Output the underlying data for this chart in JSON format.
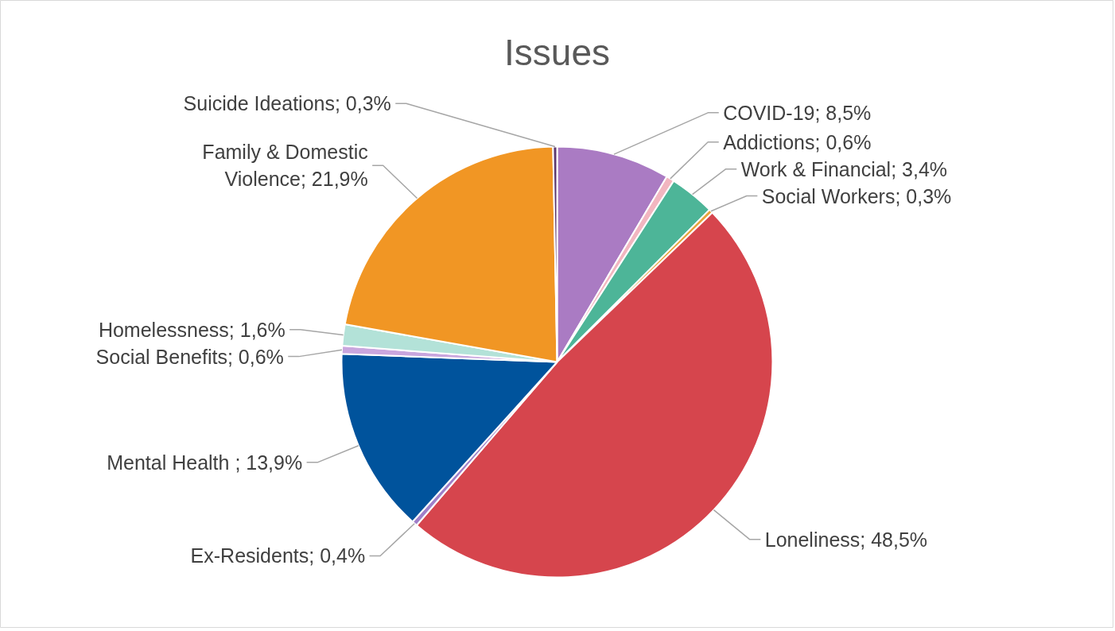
{
  "chart_data": {
    "type": "pie",
    "title": "Issues",
    "categories": [
      "COVID-19",
      "Addictions",
      "Work & Financial",
      "Social Workers",
      "Loneliness",
      "Ex-Residents",
      "Mental Health ",
      "Social Benefits",
      "Homelessness",
      "Family & Domestic Violence",
      "Suicide Ideations"
    ],
    "values": [
      8.5,
      0.6,
      3.4,
      0.3,
      48.5,
      0.4,
      13.9,
      0.6,
      1.6,
      21.9,
      0.3
    ],
    "value_labels": [
      "8,5%",
      "0,6%",
      "3,4%",
      "0,3%",
      "48,5%",
      "0,4%",
      "13,9%",
      "0,6%",
      "1,6%",
      "21,9%",
      "0,3%"
    ],
    "colors": [
      "#aa7bc3",
      "#f2b6c0",
      "#4db598",
      "#e8a33a",
      "#d6454d",
      "#9f7fc9",
      "#00539c",
      "#c9a6de",
      "#b3e2d8",
      "#f19624",
      "#5e3a6e"
    ]
  }
}
